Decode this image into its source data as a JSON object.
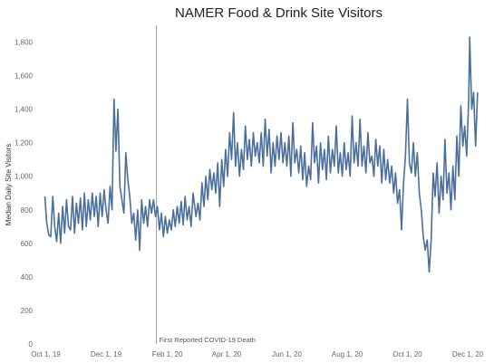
{
  "chart_data": {
    "type": "line",
    "title": "NAMER Food & Drink Site Visitors",
    "ylabel": "Median Daily Site Visitors",
    "xlabel": "",
    "ylim": [
      0,
      1900
    ],
    "yticks": [
      0,
      200,
      400,
      600,
      800,
      1000,
      1200,
      1400,
      1600,
      1800
    ],
    "ytick_labels": [
      "0",
      "200",
      "400",
      "600",
      "800",
      "1,000",
      "1,200",
      "1,400",
      "1,600",
      "1,800"
    ],
    "x_start": "2019-09-25",
    "x_end": "2020-12-12",
    "xticks": [
      {
        "date": "2019-10-01",
        "label": "Oct 1, 19"
      },
      {
        "date": "2019-12-01",
        "label": "Dec 1, 19"
      },
      {
        "date": "2020-02-01",
        "label": "Feb 1, 20"
      },
      {
        "date": "2020-04-01",
        "label": "Apr 1, 20"
      },
      {
        "date": "2020-06-01",
        "label": "Jun 1, 20"
      },
      {
        "date": "2020-08-01",
        "label": "Aug 1, 20"
      },
      {
        "date": "2020-10-01",
        "label": "Oct 1, 20"
      },
      {
        "date": "2020-12-01",
        "label": "Dec 1, 20"
      }
    ],
    "annotation": {
      "date": "2020-01-21",
      "label": "First Reported COVID-19 Death"
    },
    "grid": false,
    "color": "#4a6f9d",
    "series": [
      {
        "name": "",
        "points": [
          [
            "2019-09-30",
            880
          ],
          [
            "2019-10-02",
            720
          ],
          [
            "2019-10-04",
            650
          ],
          [
            "2019-10-06",
            640
          ],
          [
            "2019-10-08",
            880
          ],
          [
            "2019-10-10",
            700
          ],
          [
            "2019-10-12",
            610
          ],
          [
            "2019-10-14",
            780
          ],
          [
            "2019-10-16",
            600
          ],
          [
            "2019-10-18",
            820
          ],
          [
            "2019-10-20",
            660
          ],
          [
            "2019-10-22",
            860
          ],
          [
            "2019-10-24",
            700
          ],
          [
            "2019-10-26",
            680
          ],
          [
            "2019-10-28",
            880
          ],
          [
            "2019-10-30",
            660
          ],
          [
            "2019-11-01",
            840
          ],
          [
            "2019-11-03",
            720
          ],
          [
            "2019-11-05",
            870
          ],
          [
            "2019-11-07",
            680
          ],
          [
            "2019-11-09",
            900
          ],
          [
            "2019-11-11",
            700
          ],
          [
            "2019-11-13",
            860
          ],
          [
            "2019-11-15",
            740
          ],
          [
            "2019-11-17",
            900
          ],
          [
            "2019-11-19",
            760
          ],
          [
            "2019-11-21",
            880
          ],
          [
            "2019-11-23",
            700
          ],
          [
            "2019-11-25",
            900
          ],
          [
            "2019-11-27",
            760
          ],
          [
            "2019-11-29",
            920
          ],
          [
            "2019-12-01",
            800
          ],
          [
            "2019-12-03",
            720
          ],
          [
            "2019-12-05",
            940
          ],
          [
            "2019-12-07",
            800
          ],
          [
            "2019-12-09",
            1460
          ],
          [
            "2019-12-11",
            1150
          ],
          [
            "2019-12-13",
            1400
          ],
          [
            "2019-12-15",
            940
          ],
          [
            "2019-12-17",
            860
          ],
          [
            "2019-12-19",
            780
          ],
          [
            "2019-12-21",
            1140
          ],
          [
            "2019-12-23",
            980
          ],
          [
            "2019-12-25",
            880
          ],
          [
            "2019-12-27",
            720
          ],
          [
            "2019-12-29",
            780
          ],
          [
            "2019-12-31",
            620
          ],
          [
            "2020-01-02",
            800
          ],
          [
            "2020-01-04",
            560
          ],
          [
            "2020-01-06",
            860
          ],
          [
            "2020-01-08",
            720
          ],
          [
            "2020-01-10",
            820
          ],
          [
            "2020-01-12",
            700
          ],
          [
            "2020-01-14",
            860
          ],
          [
            "2020-01-16",
            780
          ],
          [
            "2020-01-18",
            860
          ],
          [
            "2020-01-20",
            760
          ],
          [
            "2020-01-22",
            820
          ],
          [
            "2020-01-24",
            680
          ],
          [
            "2020-01-26",
            780
          ],
          [
            "2020-01-28",
            640
          ],
          [
            "2020-01-30",
            760
          ],
          [
            "2020-02-01",
            660
          ],
          [
            "2020-02-03",
            740
          ],
          [
            "2020-02-05",
            680
          ],
          [
            "2020-02-07",
            800
          ],
          [
            "2020-02-09",
            700
          ],
          [
            "2020-02-11",
            820
          ],
          [
            "2020-02-13",
            720
          ],
          [
            "2020-02-15",
            850
          ],
          [
            "2020-02-17",
            710
          ],
          [
            "2020-02-19",
            880
          ],
          [
            "2020-02-21",
            740
          ],
          [
            "2020-02-23",
            820
          ],
          [
            "2020-02-25",
            700
          ],
          [
            "2020-02-27",
            900
          ],
          [
            "2020-03-01",
            760
          ],
          [
            "2020-03-03",
            840
          ],
          [
            "2020-03-05",
            740
          ],
          [
            "2020-03-07",
            960
          ],
          [
            "2020-03-09",
            820
          ],
          [
            "2020-03-11",
            1000
          ],
          [
            "2020-03-13",
            860
          ],
          [
            "2020-03-15",
            1040
          ],
          [
            "2020-03-17",
            920
          ],
          [
            "2020-03-19",
            1020
          ],
          [
            "2020-03-21",
            900
          ],
          [
            "2020-03-23",
            1080
          ],
          [
            "2020-03-25",
            820
          ],
          [
            "2020-03-27",
            1100
          ],
          [
            "2020-03-29",
            940
          ],
          [
            "2020-03-31",
            1160
          ],
          [
            "2020-04-02",
            1000
          ],
          [
            "2020-04-04",
            1260
          ],
          [
            "2020-04-06",
            1100
          ],
          [
            "2020-04-08",
            1380
          ],
          [
            "2020-04-10",
            1060
          ],
          [
            "2020-04-12",
            1200
          ],
          [
            "2020-04-14",
            1000
          ],
          [
            "2020-04-16",
            1160
          ],
          [
            "2020-04-18",
            1040
          ],
          [
            "2020-04-20",
            1300
          ],
          [
            "2020-04-22",
            1100
          ],
          [
            "2020-04-24",
            1220
          ],
          [
            "2020-04-26",
            1060
          ],
          [
            "2020-04-28",
            1260
          ],
          [
            "2020-04-30",
            1120
          ],
          [
            "2020-05-02",
            1200
          ],
          [
            "2020-05-04",
            1080
          ],
          [
            "2020-05-06",
            1260
          ],
          [
            "2020-05-08",
            1060
          ],
          [
            "2020-05-10",
            1340
          ],
          [
            "2020-05-12",
            1120
          ],
          [
            "2020-05-14",
            1280
          ],
          [
            "2020-05-16",
            1020
          ],
          [
            "2020-05-18",
            1200
          ],
          [
            "2020-05-20",
            1060
          ],
          [
            "2020-05-22",
            1240
          ],
          [
            "2020-05-24",
            1100
          ],
          [
            "2020-05-26",
            1260
          ],
          [
            "2020-05-28",
            1080
          ],
          [
            "2020-05-30",
            1200
          ],
          [
            "2020-06-01",
            1060
          ],
          [
            "2020-06-03",
            1240
          ],
          [
            "2020-06-05",
            1000
          ],
          [
            "2020-06-07",
            1320
          ],
          [
            "2020-06-09",
            1080
          ],
          [
            "2020-06-11",
            1160
          ],
          [
            "2020-06-13",
            1020
          ],
          [
            "2020-06-15",
            1180
          ],
          [
            "2020-06-17",
            980
          ],
          [
            "2020-06-19",
            1140
          ],
          [
            "2020-06-21",
            940
          ],
          [
            "2020-06-23",
            1060
          ],
          [
            "2020-06-25",
            980
          ],
          [
            "2020-06-27",
            1320
          ],
          [
            "2020-06-29",
            1080
          ],
          [
            "2020-07-01",
            1180
          ],
          [
            "2020-07-03",
            960
          ],
          [
            "2020-07-05",
            1200
          ],
          [
            "2020-07-07",
            1040
          ],
          [
            "2020-07-09",
            1160
          ],
          [
            "2020-07-11",
            980
          ],
          [
            "2020-07-13",
            1240
          ],
          [
            "2020-07-15",
            1020
          ],
          [
            "2020-07-17",
            1160
          ],
          [
            "2020-07-19",
            1060
          ],
          [
            "2020-07-21",
            1300
          ],
          [
            "2020-07-23",
            1020
          ],
          [
            "2020-07-25",
            1140
          ],
          [
            "2020-07-27",
            1000
          ],
          [
            "2020-07-29",
            1200
          ],
          [
            "2020-07-31",
            1040
          ],
          [
            "2020-08-02",
            1140
          ],
          [
            "2020-08-04",
            1000
          ],
          [
            "2020-08-06",
            1360
          ],
          [
            "2020-08-08",
            1080
          ],
          [
            "2020-08-10",
            1200
          ],
          [
            "2020-08-12",
            1060
          ],
          [
            "2020-08-14",
            1340
          ],
          [
            "2020-08-16",
            1060
          ],
          [
            "2020-08-18",
            1180
          ],
          [
            "2020-08-20",
            1020
          ],
          [
            "2020-08-22",
            1260
          ],
          [
            "2020-08-24",
            1080
          ],
          [
            "2020-08-26",
            1120
          ],
          [
            "2020-08-28",
            1000
          ],
          [
            "2020-08-30",
            1220
          ],
          [
            "2020-09-01",
            1060
          ],
          [
            "2020-09-03",
            1180
          ],
          [
            "2020-09-05",
            960
          ],
          [
            "2020-09-07",
            1160
          ],
          [
            "2020-09-09",
            980
          ],
          [
            "2020-09-11",
            1100
          ],
          [
            "2020-09-13",
            960
          ],
          [
            "2020-09-15",
            1060
          ],
          [
            "2020-09-17",
            900
          ],
          [
            "2020-09-19",
            1020
          ],
          [
            "2020-09-21",
            840
          ],
          [
            "2020-09-23",
            920
          ],
          [
            "2020-09-25",
            680
          ],
          [
            "2020-09-27",
            960
          ],
          [
            "2020-09-29",
            1120
          ],
          [
            "2020-10-01",
            1460
          ],
          [
            "2020-10-03",
            1080
          ],
          [
            "2020-10-05",
            1020
          ],
          [
            "2020-10-07",
            1200
          ],
          [
            "2020-10-09",
            1000
          ],
          [
            "2020-10-11",
            1140
          ],
          [
            "2020-10-13",
            900
          ],
          [
            "2020-10-15",
            800
          ],
          [
            "2020-10-17",
            640
          ],
          [
            "2020-10-19",
            560
          ],
          [
            "2020-10-21",
            620
          ],
          [
            "2020-10-23",
            430
          ],
          [
            "2020-10-25",
            620
          ],
          [
            "2020-10-27",
            1020
          ],
          [
            "2020-10-29",
            880
          ],
          [
            "2020-10-31",
            1080
          ],
          [
            "2020-11-02",
            780
          ],
          [
            "2020-11-04",
            1000
          ],
          [
            "2020-11-06",
            860
          ],
          [
            "2020-11-08",
            1220
          ],
          [
            "2020-11-10",
            900
          ],
          [
            "2020-11-12",
            1020
          ],
          [
            "2020-11-14",
            800
          ],
          [
            "2020-11-16",
            1060
          ],
          [
            "2020-11-18",
            860
          ],
          [
            "2020-11-20",
            1240
          ],
          [
            "2020-11-22",
            1000
          ],
          [
            "2020-11-24",
            1420
          ],
          [
            "2020-11-26",
            1180
          ],
          [
            "2020-11-28",
            1300
          ],
          [
            "2020-11-30",
            1120
          ],
          [
            "2020-12-02",
            1460
          ],
          [
            "2020-12-03",
            1830
          ],
          [
            "2020-12-05",
            1400
          ],
          [
            "2020-12-07",
            1500
          ],
          [
            "2020-12-09",
            1180
          ],
          [
            "2020-12-11",
            1500
          ]
        ]
      }
    ]
  }
}
